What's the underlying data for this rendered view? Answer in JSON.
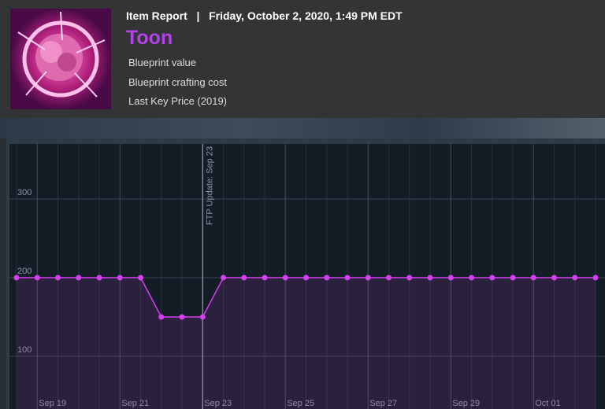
{
  "header": {
    "label": "Item Report",
    "separator": "|",
    "date": "Friday, October 2, 2020, 1:49 PM EDT"
  },
  "item": {
    "name": "Toon",
    "details": [
      "Blueprint value",
      "Blueprint crafting cost",
      "Last Key Price (2019)"
    ]
  },
  "chart_data": {
    "type": "line",
    "x": [
      0,
      1,
      2,
      3,
      4,
      5,
      6,
      7,
      8,
      9,
      10,
      11,
      12,
      13,
      14,
      15,
      16,
      17,
      18,
      19,
      20,
      21,
      22,
      23,
      24,
      25,
      26,
      27,
      28
    ],
    "series": [
      {
        "name": null,
        "color": "#d63ff0",
        "values": [
          200,
          200,
          200,
          200,
          200,
          200,
          200,
          150,
          150,
          150,
          200,
          200,
          200,
          200,
          200,
          200,
          200,
          200,
          200,
          200,
          200,
          200,
          200,
          200,
          200,
          200,
          200,
          200,
          200
        ]
      }
    ],
    "xlim": [
      0,
      28
    ],
    "xticks": [
      {
        "value": 1,
        "label": "Sep 19"
      },
      {
        "value": 5,
        "label": "Sep 21"
      },
      {
        "value": 9,
        "label": "Sep 23"
      },
      {
        "value": 13,
        "label": "Sep 25"
      },
      {
        "value": 17,
        "label": "Sep 27"
      },
      {
        "value": 21,
        "label": "Sep 29"
      },
      {
        "value": 25,
        "label": "Oct 01"
      }
    ],
    "ylim": [
      33,
      370
    ],
    "yticks": [
      100,
      200,
      300
    ],
    "grid": true,
    "annotations": [
      {
        "x": 9,
        "text": "FTP Update: Sep 23"
      }
    ]
  }
}
